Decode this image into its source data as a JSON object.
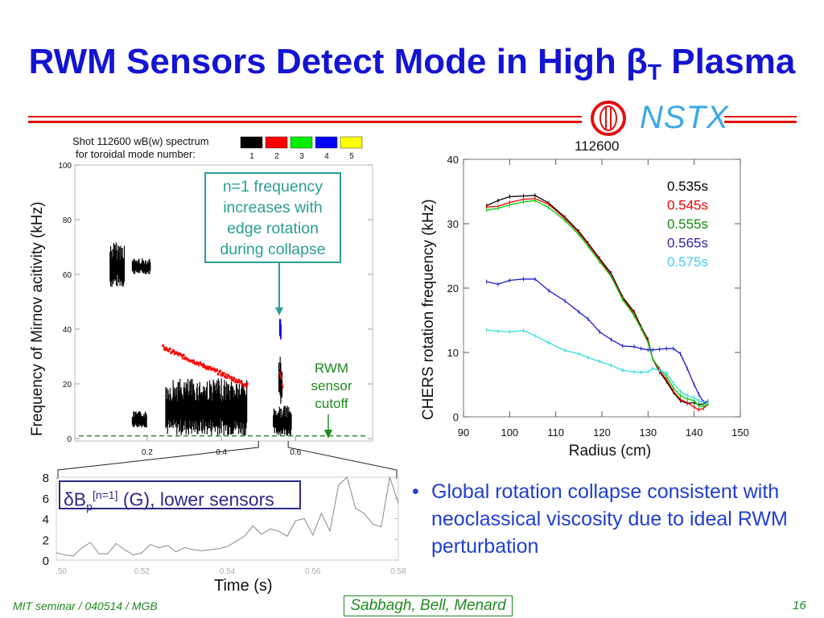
{
  "title": {
    "prefix": "RWM Sensors Detect Mode in High ",
    "beta": "β",
    "sub": "T",
    "suffix": " Plasma",
    "color": "#1414d2"
  },
  "logo": {
    "text": "NSTX",
    "shot": "112600"
  },
  "annotation": {
    "lines": [
      "n=1 frequency",
      "increases with",
      "edge rotation",
      "during collapse"
    ]
  },
  "cutoff_label": {
    "lines": [
      "RWM",
      "sensor",
      "cutoff"
    ]
  },
  "bottom_box": {
    "delta": "δB",
    "sub": "p",
    "sup": "[n=1]",
    "rest": " (G), lower sensors"
  },
  "bullet": {
    "marker": "•",
    "text": "Global rotation collapse consistent with neoclassical viscosity due to ideal RWM perturbation"
  },
  "footer": {
    "left": "MIT seminar / 040514 / MGB",
    "authors": "Sabbagh, Bell, Menard",
    "page": "16"
  },
  "chart_data": [
    {
      "type": "heatmap",
      "title_lines": [
        "Shot 112600 wB(w) spectrum",
        "for toroidal mode number:"
      ],
      "ylabel": "Frequency of Mirnov acitivity (kHz)",
      "xlabel": "",
      "xlim": [
        -0.06,
        0.79
      ],
      "ylim": [
        0,
        100
      ],
      "xticks": [
        "0.2",
        "0.4",
        "0.6"
      ],
      "xtick_values": [
        0.2,
        0.4,
        0.6
      ],
      "yticks": [
        "0",
        "20",
        "40",
        "60",
        "80",
        "100"
      ],
      "ytick_values": [
        0,
        20,
        40,
        60,
        80,
        100
      ],
      "legend": [
        {
          "label": "1",
          "color": "#000000"
        },
        {
          "label": "2",
          "color": "#ff0000"
        },
        {
          "label": "3",
          "color": "#00ee00"
        },
        {
          "label": "4",
          "color": "#0000ff"
        },
        {
          "label": "5",
          "color": "#ffff00"
        }
      ],
      "rwm_cutoff_khz": 1,
      "annotation_arrow": {
        "t": 0.56,
        "f": 45
      },
      "features": [
        {
          "mode": 1,
          "t": [
            0.1,
            0.14
          ],
          "f": [
            55,
            72
          ]
        },
        {
          "mode": 1,
          "t": [
            0.16,
            0.21
          ],
          "f": [
            60,
            66
          ]
        },
        {
          "mode": 1,
          "t": [
            0.16,
            0.2
          ],
          "f": [
            4,
            10
          ]
        },
        {
          "mode": 1,
          "t": [
            0.25,
            0.47
          ],
          "f": [
            1,
            22
          ]
        },
        {
          "mode": 1,
          "t": [
            0.54,
            0.59
          ],
          "f": [
            1,
            12
          ]
        },
        {
          "mode": 1,
          "t": [
            0.555,
            0.565
          ],
          "f": [
            12,
            30
          ]
        },
        {
          "mode": 2,
          "t": [
            0.24,
            0.47
          ],
          "f": [
            19,
            33
          ]
        },
        {
          "mode": 2,
          "t": [
            0.555,
            0.565
          ],
          "f": [
            18,
            24
          ]
        },
        {
          "mode": 4,
          "t": [
            0.557,
            0.562
          ],
          "f": [
            35,
            44
          ]
        }
      ]
    },
    {
      "type": "line",
      "title": "112600",
      "xlabel": "Radius (cm)",
      "ylabel": "CHERS rotation frequency (kHz)",
      "xlim": [
        90,
        150
      ],
      "ylim": [
        0,
        40
      ],
      "xticks": [
        "90",
        "100",
        "110",
        "120",
        "130",
        "140",
        "150"
      ],
      "yticks": [
        "0",
        "10",
        "20",
        "30",
        "40"
      ],
      "x": [
        95,
        97.5,
        100,
        103,
        105.5,
        108.5,
        112,
        115,
        117,
        119.5,
        122,
        124.5,
        127,
        128.5,
        130,
        131,
        132.5,
        134,
        135.5,
        137,
        138.5,
        140,
        141,
        142,
        143
      ],
      "series": [
        {
          "name": "0.535s",
          "color": "#000000",
          "values": [
            32.8,
            33.6,
            34.2,
            34.3,
            34.4,
            33.2,
            31.0,
            28.8,
            27.0,
            24.6,
            22.3,
            18.6,
            16.3,
            14.0,
            12.0,
            9.0,
            7.0,
            5.5,
            3.8,
            2.5,
            2.1,
            2.2,
            1.9,
            2.0,
            2.3
          ]
        },
        {
          "name": "0.545s",
          "color": "#ee0000",
          "values": [
            32.6,
            32.7,
            33.3,
            33.8,
            33.9,
            33.0,
            30.8,
            28.6,
            26.8,
            24.4,
            22.0,
            18.4,
            16.0,
            13.8,
            11.8,
            9.0,
            7.2,
            5.8,
            4.0,
            2.7,
            2.2,
            1.5,
            1.1,
            1.3,
            2.0
          ]
        },
        {
          "name": "0.555s",
          "color": "#00cc00",
          "values": [
            32.1,
            32.4,
            32.9,
            33.4,
            33.6,
            32.5,
            30.5,
            28.3,
            26.5,
            24.1,
            21.8,
            18.2,
            15.7,
            13.7,
            11.5,
            9.0,
            7.5,
            6.3,
            4.5,
            3.3,
            2.8,
            2.5,
            1.7,
            1.6,
            2.0
          ]
        },
        {
          "name": "0.565s",
          "color": "#1a1acc",
          "values": [
            21.0,
            20.6,
            21.2,
            21.4,
            21.4,
            19.6,
            18.0,
            16.3,
            15.2,
            13.2,
            12.0,
            11.0,
            10.9,
            10.6,
            10.4,
            10.4,
            10.5,
            10.6,
            10.6,
            9.8,
            7.5,
            5.0,
            3.5,
            2.3,
            2.4
          ]
        },
        {
          "name": "0.575s",
          "color": "#33dddd",
          "values": [
            13.5,
            13.3,
            13.2,
            13.4,
            12.6,
            11.5,
            10.3,
            9.8,
            9.2,
            8.6,
            8.0,
            7.2,
            7.0,
            6.9,
            7.0,
            7.5,
            7.2,
            6.8,
            5.2,
            4.0,
            3.3,
            3.0,
            2.5,
            2.2,
            2.3
          ]
        }
      ],
      "legend_placement": "top-right",
      "legend_colors": [
        "#000000",
        "#ee0000",
        "#118811",
        "#2a2a99",
        "#44ccee"
      ]
    },
    {
      "type": "line",
      "xlabel": "Time (s)",
      "ylabel": "",
      "xlim": [
        0.5,
        0.58
      ],
      "ylim": [
        0,
        8
      ],
      "xticks": [
        ".50",
        "0.52",
        "0.54",
        "0.56",
        "0.58"
      ],
      "yticks": [
        "0",
        "2",
        "4",
        "6",
        "8"
      ],
      "x": [
        0.5,
        0.502,
        0.504,
        0.506,
        0.508,
        0.51,
        0.512,
        0.514,
        0.516,
        0.518,
        0.52,
        0.522,
        0.524,
        0.526,
        0.528,
        0.53,
        0.532,
        0.534,
        0.536,
        0.538,
        0.54,
        0.542,
        0.544,
        0.546,
        0.548,
        0.55,
        0.552,
        0.554,
        0.556,
        0.558,
        0.56,
        0.562,
        0.564,
        0.566,
        0.568,
        0.57,
        0.572,
        0.574,
        0.576,
        0.578,
        0.58
      ],
      "series": [
        {
          "name": "δBp[n=1] (G), lower sensors",
          "color": "#888888",
          "values": [
            0.7,
            0.5,
            0.4,
            1.2,
            1.7,
            0.6,
            0.6,
            1.6,
            1.0,
            0.5,
            0.7,
            1.5,
            1.2,
            1.4,
            0.8,
            1.2,
            1.0,
            0.9,
            1.0,
            1.1,
            1.3,
            1.8,
            2.3,
            3.3,
            2.5,
            3.0,
            2.8,
            2.3,
            3.8,
            4.0,
            2.4,
            4.5,
            2.8,
            7.2,
            8.0,
            5.0,
            4.5,
            3.5,
            3.2,
            8.0,
            5.5
          ]
        }
      ]
    }
  ]
}
